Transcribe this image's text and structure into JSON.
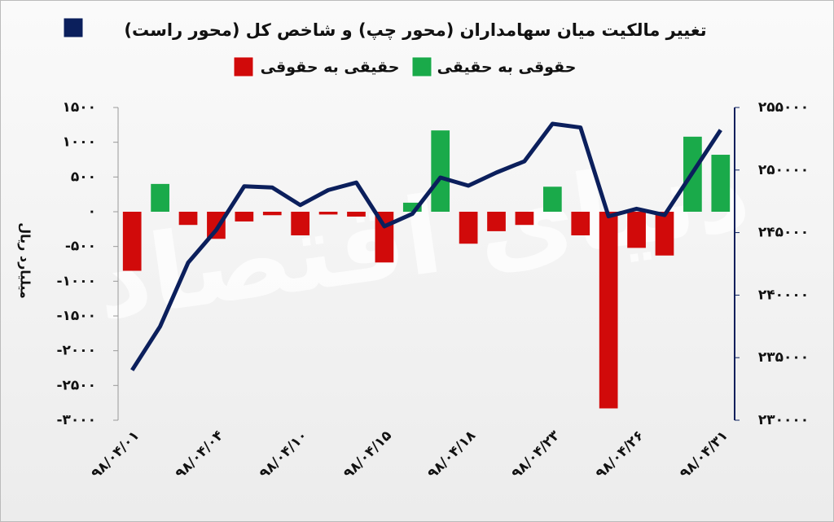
{
  "chart_data": {
    "type": "bar-line",
    "title": "تغییر مالکیت میان سهامداران (محور چپ) و شاخص کل (محور راست)",
    "y_label": "میلیارد ریال",
    "watermark": "دنیای اقتصاد",
    "categories": [
      "۹۸/۰۴/۰۱",
      null,
      null,
      "۹۸/۰۴/۰۴",
      null,
      null,
      "۹۸/۰۴/۱۰",
      null,
      null,
      "۹۸/۰۴/۱۵",
      null,
      null,
      "۹۸/۰۴/۱۸",
      null,
      null,
      "۹۸/۰۴/۲۳",
      null,
      null,
      "۹۸/۰۴/۲۶",
      null,
      null,
      "۹۸/۰۴/۳۱"
    ],
    "series": [
      {
        "name": "شاخص کل",
        "type": "line",
        "axis": "y2",
        "color": "#0b1f5c",
        "values": [
          234000,
          237500,
          242600,
          245200,
          248700,
          248600,
          247200,
          248400,
          249000,
          245500,
          246500,
          249400,
          248750,
          249800,
          250700,
          253700,
          253400,
          246300,
          246900,
          246400,
          249800,
          253200
        ]
      },
      {
        "name": "حقوقی به حقیقی",
        "type": "bar",
        "color": "#1aaa4a",
        "values": [
          null,
          400,
          null,
          null,
          null,
          null,
          null,
          null,
          null,
          null,
          130,
          1170,
          null,
          null,
          null,
          360,
          null,
          null,
          null,
          null,
          1080,
          820
        ]
      },
      {
        "name": "حقیقی به حقوقی",
        "type": "bar",
        "color": "#d10a0a",
        "values": [
          -850,
          null,
          -190,
          -390,
          -140,
          -50,
          -340,
          -40,
          -70,
          -730,
          null,
          null,
          -460,
          -280,
          -190,
          null,
          -340,
          -2830,
          -520,
          -630,
          null,
          null
        ]
      }
    ],
    "ylim": [
      -3000,
      1500
    ],
    "yticks": [
      {
        "value": -3000,
        "label": "-۳۰۰۰"
      },
      {
        "value": -2500,
        "label": "-۲۵۰۰"
      },
      {
        "value": -2000,
        "label": "-۲۰۰۰"
      },
      {
        "value": -1500,
        "label": "-۱۵۰۰"
      },
      {
        "value": -1000,
        "label": "-۱۰۰۰"
      },
      {
        "value": -500,
        "label": "-۵۰۰"
      },
      {
        "value": 0,
        "label": "۰"
      },
      {
        "value": 500,
        "label": "۵۰۰"
      },
      {
        "value": 1000,
        "label": "۱۰۰۰"
      },
      {
        "value": 1500,
        "label": "۱۵۰۰"
      }
    ],
    "y2lim": [
      230000,
      255000
    ],
    "y2ticks": [
      {
        "value": 230000,
        "label": "۲۳۰۰۰۰"
      },
      {
        "value": 235000,
        "label": "۲۳۵۰۰۰"
      },
      {
        "value": 240000,
        "label": "۲۴۰۰۰۰"
      },
      {
        "value": 245000,
        "label": "۲۴۵۰۰۰"
      },
      {
        "value": 250000,
        "label": "۲۵۰۰۰۰"
      },
      {
        "value": 255000,
        "label": "۲۵۵۰۰۰"
      }
    ]
  }
}
